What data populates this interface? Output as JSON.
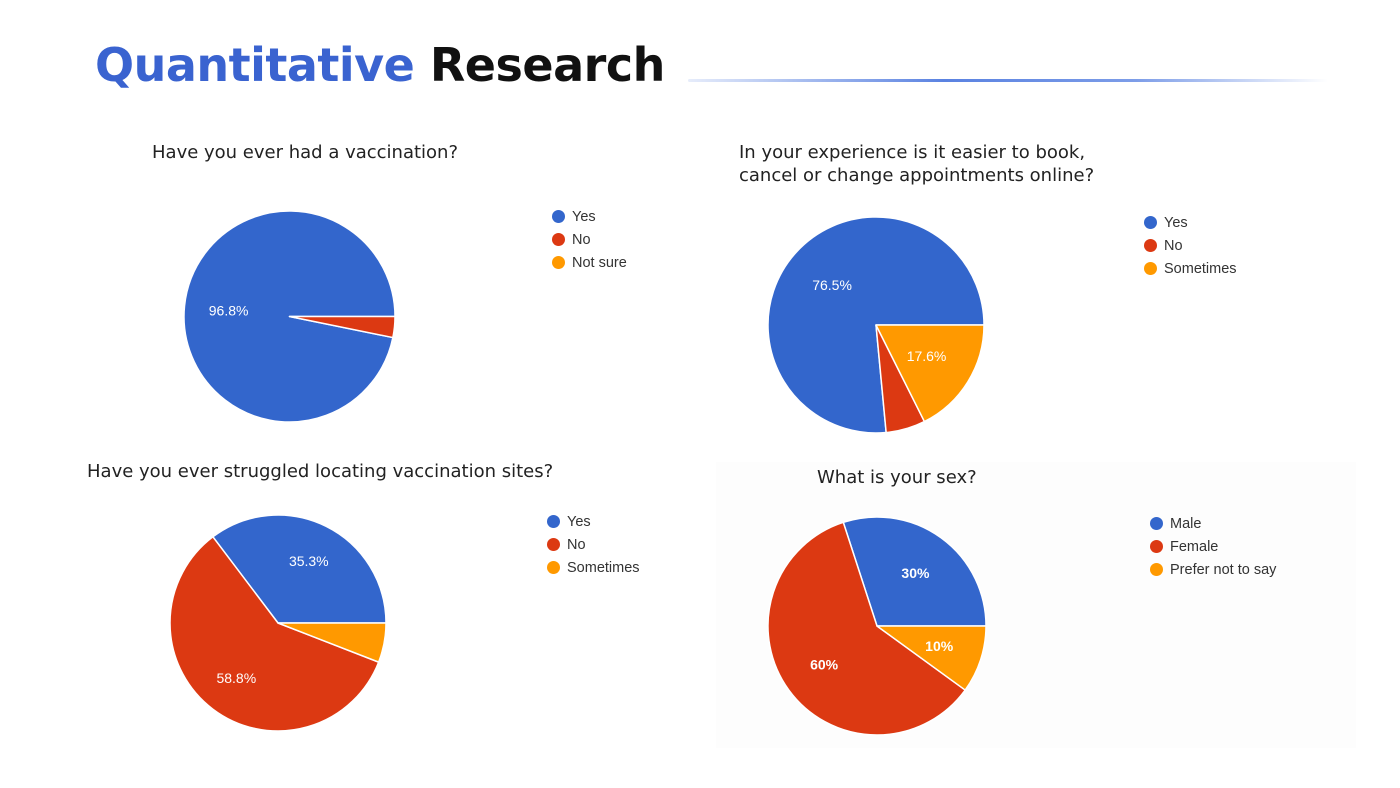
{
  "page": {
    "title_accent": "Quantitative",
    "title_rest": "Research"
  },
  "colors": {
    "accent": "#3a63d0",
    "series": [
      "#3366cc",
      "#dc3912",
      "#ff9900"
    ]
  },
  "chart_data": [
    {
      "type": "pie",
      "title": "Have you ever had a vaccination?",
      "categories": [
        "Yes",
        "No",
        "Not sure"
      ],
      "values": [
        96.8,
        3.2,
        0
      ],
      "labels": [
        "96.8%",
        "",
        ""
      ],
      "legend": "right"
    },
    {
      "type": "pie",
      "title": "In your experience is it easier to book, cancel or change appointments online?",
      "title_lines": [
        "In your experience is it easier to book,",
        "cancel or change appointments online?"
      ],
      "categories": [
        "Yes",
        "No",
        "Sometimes"
      ],
      "values": [
        76.5,
        5.9,
        17.6
      ],
      "labels": [
        "76.5%",
        "",
        "17.6%"
      ],
      "legend": "right"
    },
    {
      "type": "pie",
      "title": "Have you ever struggled locating vaccination sites?",
      "categories": [
        "Yes",
        "No",
        "Sometimes"
      ],
      "values": [
        35.3,
        58.8,
        5.9
      ],
      "labels": [
        "35.3%",
        "58.8%",
        ""
      ],
      "legend": "right"
    },
    {
      "type": "pie",
      "title": "What is your sex?",
      "categories": [
        "Male",
        "Female",
        "Prefer not to say"
      ],
      "values": [
        30,
        60,
        10
      ],
      "labels": [
        "30%",
        "60%",
        "10%"
      ],
      "legend": "right"
    }
  ]
}
